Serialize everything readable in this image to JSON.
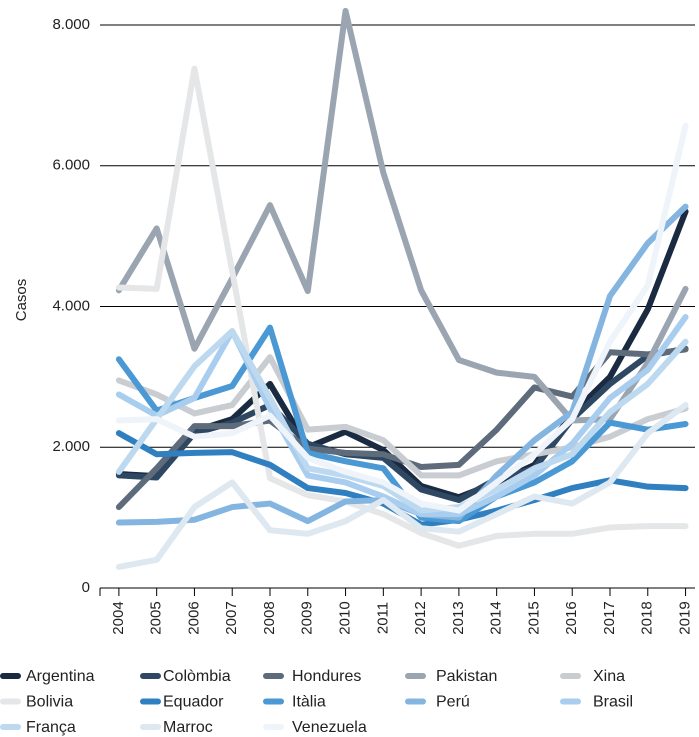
{
  "chart_data": {
    "type": "line",
    "y_label": "Casos",
    "x": [
      2004,
      2005,
      2006,
      2007,
      2008,
      2009,
      2010,
      2011,
      2012,
      2013,
      2014,
      2015,
      2016,
      2017,
      2018,
      2019
    ],
    "xlim": [
      2003.5,
      2019.25
    ],
    "xticks": [
      2004,
      2005,
      2006,
      2007,
      2008,
      2009,
      2010,
      2011,
      2012,
      2013,
      2014,
      2015,
      2016,
      2017,
      2018,
      2019
    ],
    "ylim": [
      0,
      8000
    ],
    "yticks": [
      0,
      {
        "value": 2000,
        "label": "2.000"
      },
      {
        "value": 4000,
        "label": "4.000"
      },
      {
        "value": 6000,
        "label": "6.000"
      },
      {
        "value": 8000,
        "label": "8.000"
      }
    ],
    "grid": true,
    "legend": "bottom",
    "series": [
      {
        "name": "Argentina",
        "color": "#1a2a40",
        "values": [
          1620,
          1590,
          2230,
          2400,
          2900,
          2000,
          2220,
          1960,
          1450,
          1290,
          1500,
          1750,
          2470,
          3000,
          3960,
          5350
        ]
      },
      {
        "name": "Colòmbia",
        "color": "#2e4763",
        "values": [
          1600,
          1570,
          2200,
          2350,
          2600,
          2050,
          1900,
          1850,
          1400,
          1250,
          1550,
          1700,
          2400,
          2900,
          3300,
          3400
        ]
      },
      {
        "name": "Hondures",
        "color": "#5d6b7a",
        "values": [
          1150,
          1700,
          2300,
          2300,
          2380,
          1980,
          1920,
          1900,
          1720,
          1750,
          2250,
          2850,
          2720,
          3350,
          3320,
          3390
        ]
      },
      {
        "name": "Pakistan",
        "color": "#9aa5b1",
        "values": [
          4230,
          5110,
          3400,
          4400,
          5440,
          4220,
          8200,
          5900,
          4230,
          3240,
          3060,
          3000,
          2380,
          2400,
          3200,
          4250
        ]
      },
      {
        "name": "Xina",
        "color": "#c9cdd2",
        "values": [
          2950,
          2750,
          2480,
          2600,
          3280,
          2250,
          2290,
          2100,
          1600,
          1600,
          1800,
          1900,
          2000,
          2150,
          2400,
          2550
        ]
      },
      {
        "name": "Bolivia",
        "color": "#e4e6e8",
        "values": [
          4270,
          4250,
          7380,
          4500,
          1560,
          1320,
          1230,
          1050,
          780,
          600,
          740,
          770,
          770,
          860,
          880,
          880
        ]
      },
      {
        "name": "Equador",
        "color": "#2f7fc1",
        "values": [
          2200,
          1900,
          1920,
          1930,
          1750,
          1420,
          1350,
          1200,
          900,
          970,
          1100,
          1250,
          1420,
          1530,
          1440,
          1420
        ]
      },
      {
        "name": "Itàlia",
        "color": "#4a98d4",
        "values": [
          3250,
          2520,
          2700,
          2870,
          3700,
          1920,
          1800,
          1700,
          1000,
          950,
          1300,
          1500,
          1800,
          2350,
          2250,
          2330
        ]
      },
      {
        "name": "Perú",
        "color": "#84b5e0",
        "values": [
          930,
          940,
          970,
          1150,
          1200,
          950,
          1230,
          1250,
          1050,
          1000,
          1600,
          2100,
          2500,
          4150,
          4900,
          5420
        ]
      },
      {
        "name": "Brasil",
        "color": "#a9cdee",
        "values": [
          2750,
          2450,
          2700,
          3650,
          2550,
          1600,
          1500,
          1300,
          1050,
          1050,
          1300,
          1600,
          2050,
          2700,
          3100,
          3850
        ]
      },
      {
        "name": "França",
        "color": "#bcd9f0",
        "values": [
          1650,
          2400,
          3150,
          3650,
          2700,
          1700,
          1600,
          1450,
          1100,
          1150,
          1400,
          1700,
          1900,
          2500,
          2900,
          3500
        ]
      },
      {
        "name": "Marroc",
        "color": "#dde8f1",
        "values": [
          300,
          400,
          1150,
          1500,
          820,
          770,
          950,
          1250,
          850,
          800,
          1050,
          1300,
          1200,
          1500,
          2200,
          2600
        ]
      },
      {
        "name": "Venezuela",
        "color": "#eef4fa",
        "values": [
          2380,
          2400,
          2150,
          2200,
          2450,
          1850,
          1650,
          1500,
          1200,
          1100,
          1500,
          1900,
          2400,
          3500,
          4300,
          6570
        ]
      }
    ]
  }
}
